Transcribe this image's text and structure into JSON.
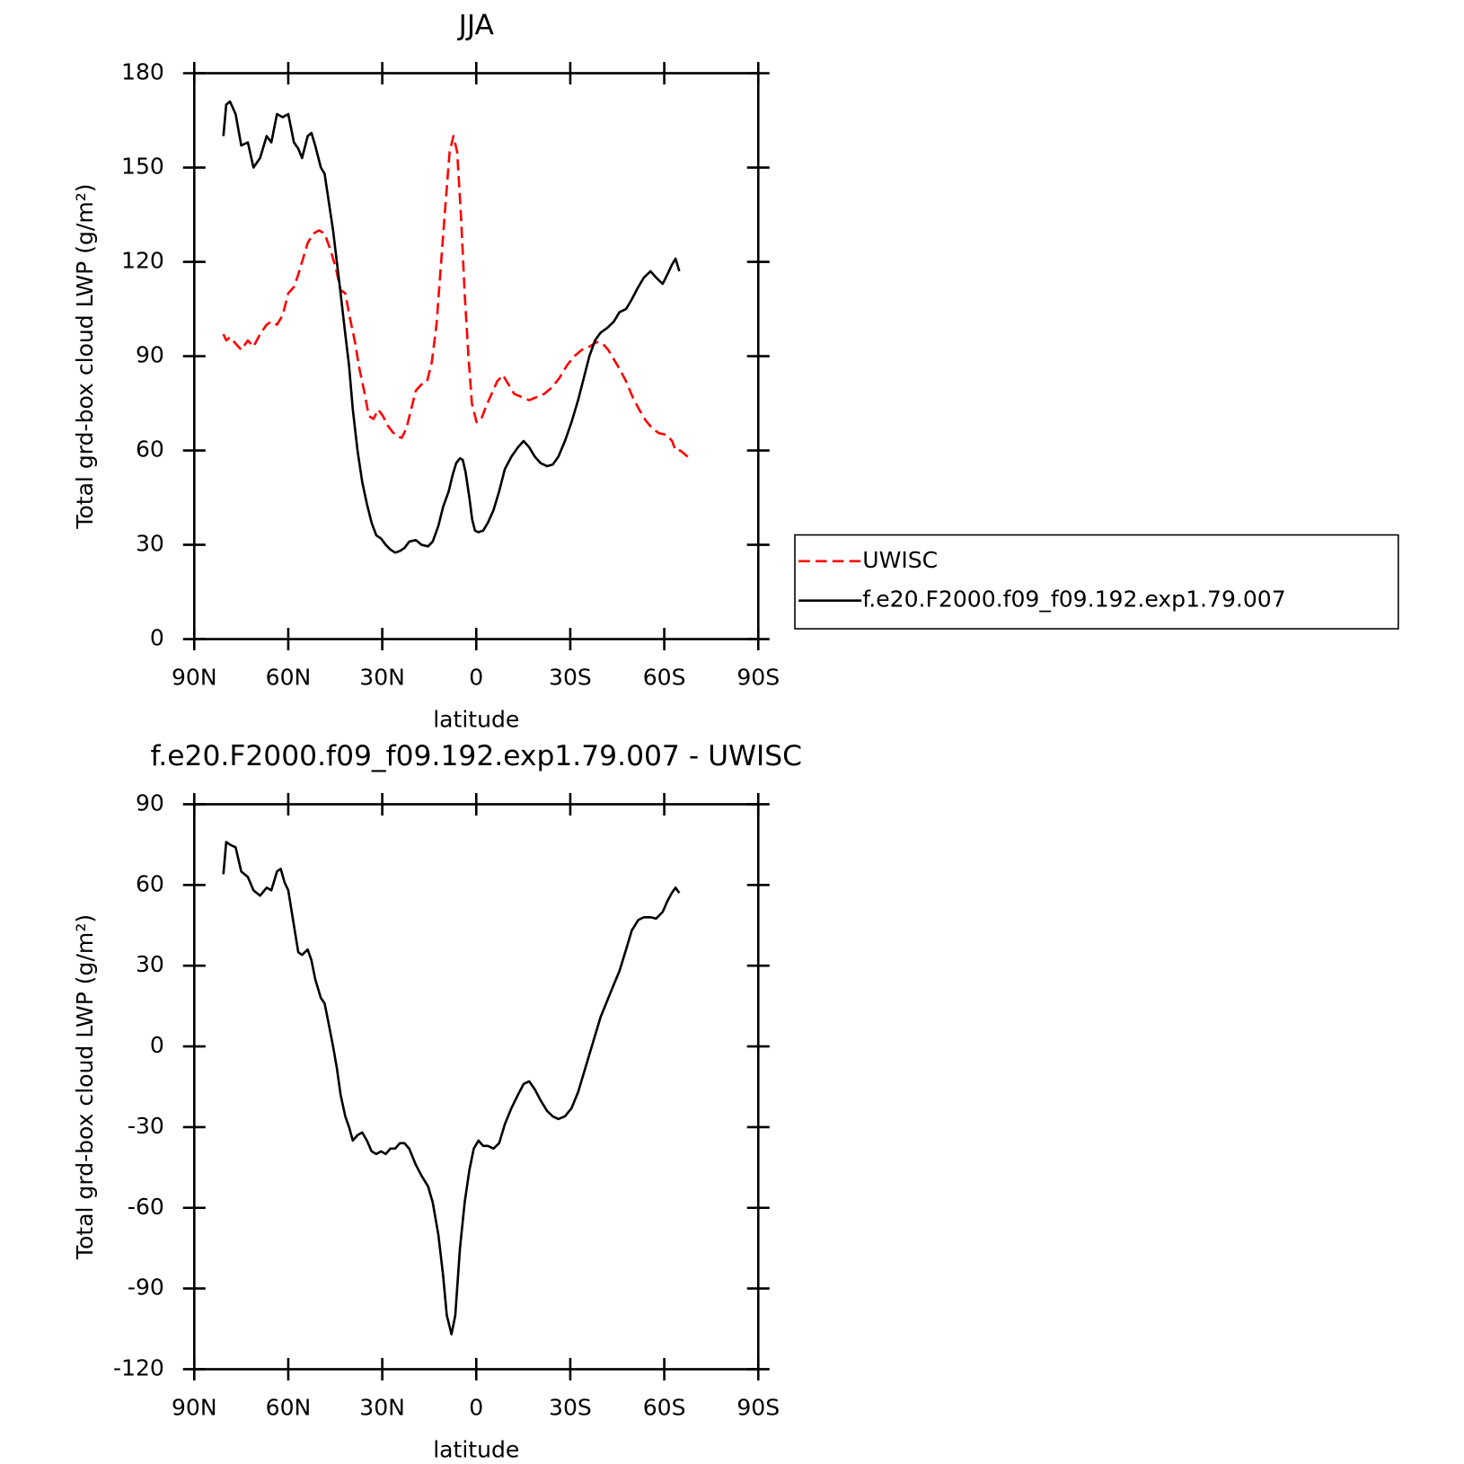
{
  "chart_data": [
    {
      "type": "line",
      "title": "JJA",
      "x_label": "latitude",
      "y_label": "Total grd-box cloud LWP (g/m²)",
      "xlim": [
        90,
        -90
      ],
      "xticks": [
        {
          "value": 90,
          "label": "90N"
        },
        {
          "value": 60,
          "label": "60N"
        },
        {
          "value": 30,
          "label": "30N"
        },
        0,
        {
          "value": -30,
          "label": "30S"
        },
        {
          "value": -60,
          "label": "60S"
        },
        {
          "value": -90,
          "label": "90S"
        }
      ],
      "ylim": [
        0,
        180
      ],
      "yticks": [
        0,
        30,
        60,
        90,
        120,
        150,
        180
      ],
      "legend": "right",
      "series": [
        {
          "name": "UWISC",
          "color": "#ff0000",
          "line_style": "dashed",
          "x": [
            80.7,
            79.8,
            78.6,
            76.8,
            75.0,
            72.9,
            71.1,
            69.0,
            66.9,
            65.4,
            63.6,
            61.8,
            60.0,
            58.2,
            56.8,
            55.6,
            53.8,
            52.0,
            50.2,
            48.4,
            46.6,
            44.8,
            43.3,
            41.8,
            40.3,
            38.8,
            37.3,
            35.8,
            34.3,
            32.8,
            31.3,
            29.8,
            28.3,
            26.8,
            25.3,
            23.8,
            22.3,
            20.8,
            19.3,
            17.5,
            15.7,
            14.2,
            12.7,
            11.2,
            9.7,
            8.5,
            7.3,
            6.1,
            4.9,
            3.7,
            2.5,
            1.4,
            -0.1,
            -1.6,
            -3.1,
            -4.9,
            -6.7,
            -8.5,
            -10.3,
            -12.1,
            -14.5,
            -16.9,
            -19.3,
            -21.7,
            -24.1,
            -26.5,
            -28.9,
            -31.3,
            -33.7,
            -36.1,
            -38.5,
            -40.3,
            -42.1,
            -43.9,
            -45.7,
            -47.8,
            -49.9,
            -52.0,
            -54.1,
            -56.2,
            -58.3,
            -60.7,
            -62.5,
            -63.6,
            -65.1,
            -66.3,
            -67.5
          ],
          "values": [
            97,
            95,
            96,
            94,
            92,
            95,
            93,
            97,
            100,
            101,
            100,
            103,
            110,
            112,
            116,
            120,
            126,
            129,
            130,
            129,
            124,
            118,
            111,
            110,
            102,
            95,
            86,
            79,
            71,
            70,
            73,
            71,
            68,
            66,
            64.5,
            64,
            67,
            73,
            79,
            81,
            82,
            88,
            100,
            120,
            140,
            155,
            160,
            155,
            135,
            110,
            90,
            75,
            69,
            70,
            74,
            78,
            82,
            84,
            81,
            78,
            77,
            76,
            77,
            78,
            80,
            83,
            87,
            90,
            92,
            93,
            94.5,
            94,
            92,
            89,
            86,
            82,
            77,
            73,
            69.5,
            67,
            65.5,
            65,
            63,
            60,
            60,
            59,
            58
          ]
        },
        {
          "name": "f.e20.F2000.f09_f09.192.exp1.79.007",
          "color": "#000000",
          "line_style": "solid",
          "x": [
            80.7,
            79.8,
            78.6,
            76.8,
            75.0,
            72.9,
            71.1,
            69.0,
            66.9,
            65.4,
            63.6,
            61.8,
            60.0,
            58.2,
            56.8,
            55.6,
            53.8,
            52.6,
            51.4,
            49.6,
            48.4,
            47.2,
            45.7,
            44.5,
            43.3,
            41.8,
            40.6,
            39.4,
            37.9,
            36.4,
            34.9,
            33.4,
            31.9,
            30.4,
            28.9,
            27.4,
            25.9,
            24.4,
            22.9,
            21.4,
            19.3,
            17.5,
            15.4,
            13.9,
            12.1,
            10.6,
            8.8,
            7.6,
            6.4,
            5.2,
            4.3,
            3.4,
            2.2,
            1.3,
            0.4,
            -0.7,
            -2.2,
            -3.7,
            -5.5,
            -7.3,
            -9.1,
            -11.2,
            -13.3,
            -15.1,
            -16.9,
            -18.7,
            -20.5,
            -22.6,
            -24.4,
            -26.2,
            -28.3,
            -30.4,
            -32.5,
            -34.3,
            -36.1,
            -37.9,
            -39.7,
            -41.8,
            -43.9,
            -45.7,
            -47.8,
            -49.6,
            -51.7,
            -53.5,
            -55.6,
            -57.4,
            -59.5,
            -61.0,
            -62.4,
            -63.6,
            -64.8
          ],
          "values": [
            160,
            170,
            171,
            167,
            157,
            158,
            150,
            153,
            160,
            158,
            167,
            166,
            167,
            158,
            156,
            153,
            160,
            161,
            157,
            150,
            148,
            140,
            130,
            120,
            110,
            97,
            87,
            73,
            60,
            50,
            43,
            37,
            33,
            32,
            30,
            28.5,
            27.5,
            28,
            29,
            31,
            31.5,
            30,
            29.5,
            31,
            36,
            42,
            47,
            52,
            56,
            57.5,
            57,
            53,
            45,
            38,
            34.5,
            34,
            34.5,
            37,
            41,
            47,
            54,
            58,
            61,
            63,
            61,
            58,
            56,
            55,
            55.5,
            58,
            63,
            69,
            76,
            83,
            90,
            95,
            97.5,
            99,
            101,
            104,
            105,
            108,
            112,
            115,
            117,
            115,
            113,
            116,
            119,
            121,
            117
          ]
        }
      ]
    },
    {
      "type": "line",
      "title": "f.e20.F2000.f09_f09.192.exp1.79.007 - UWISC",
      "x_label": "latitude",
      "y_label": "Total grd-box cloud LWP (g/m²)",
      "xlim": [
        90,
        -90
      ],
      "xticks": [
        {
          "value": 90,
          "label": "90N"
        },
        {
          "value": 60,
          "label": "60N"
        },
        {
          "value": 30,
          "label": "30N"
        },
        0,
        {
          "value": -30,
          "label": "30S"
        },
        {
          "value": -60,
          "label": "60S"
        },
        {
          "value": -90,
          "label": "90S"
        }
      ],
      "ylim": [
        -120,
        90
      ],
      "yticks": [
        -120,
        -90,
        -60,
        -30,
        0,
        30,
        60,
        90
      ],
      "series": [
        {
          "color": "#000000",
          "line_style": "solid",
          "x": [
            80.7,
            79.8,
            78.6,
            76.8,
            75.0,
            72.9,
            71.1,
            69.0,
            66.9,
            65.4,
            63.6,
            62.4,
            61.2,
            60.0,
            58.2,
            56.8,
            55.6,
            53.8,
            52.6,
            51.4,
            49.6,
            48.4,
            47.2,
            45.7,
            44.5,
            43.3,
            41.8,
            40.6,
            39.4,
            37.9,
            36.4,
            34.9,
            33.4,
            31.9,
            30.4,
            28.9,
            27.4,
            25.9,
            24.4,
            22.9,
            21.4,
            19.3,
            17.5,
            15.4,
            13.9,
            12.1,
            10.6,
            9.4,
            7.9,
            6.7,
            5.2,
            3.7,
            2.2,
            0.8,
            -0.7,
            -2.2,
            -3.7,
            -5.5,
            -7.3,
            -9.1,
            -11.2,
            -13.3,
            -15.1,
            -16.9,
            -18.7,
            -20.5,
            -22.6,
            -24.4,
            -26.2,
            -28.3,
            -30.4,
            -32.5,
            -34.3,
            -36.1,
            -37.9,
            -39.7,
            -41.8,
            -43.9,
            -45.7,
            -47.8,
            -49.6,
            -51.7,
            -53.5,
            -55.6,
            -57.4,
            -59.5,
            -61.0,
            -62.4,
            -63.6,
            -64.8
          ],
          "values": [
            64,
            76,
            75,
            74,
            65,
            63,
            58,
            56,
            59,
            58,
            65,
            66,
            61,
            58,
            45,
            35,
            34,
            36,
            32,
            25,
            18,
            16,
            9,
            0,
            -8,
            -18,
            -26,
            -30,
            -35,
            -33,
            -32,
            -35,
            -39,
            -40,
            -39,
            -40,
            -38,
            -38,
            -36,
            -36,
            -38,
            -44,
            -48,
            -52,
            -58,
            -70,
            -85,
            -100,
            -107,
            -100,
            -75,
            -58,
            -46,
            -38,
            -35,
            -37,
            -37,
            -38,
            -36,
            -29,
            -23,
            -18,
            -14,
            -13,
            -16,
            -20,
            -24,
            -26,
            -27,
            -26,
            -23,
            -17,
            -10,
            -3,
            4,
            11,
            17,
            23,
            28,
            36,
            43,
            47,
            48,
            48,
            47.5,
            50,
            54,
            57,
            59,
            57
          ]
        }
      ]
    }
  ]
}
